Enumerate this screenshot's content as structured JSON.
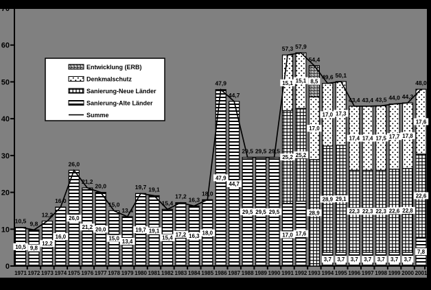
{
  "chart_data": {
    "type": "bar",
    "stacked": true,
    "title": "",
    "xlabel": "",
    "ylabel": "",
    "ylim": [
      0,
      70
    ],
    "yticks": [
      "0",
      "10",
      "20",
      "30",
      "40",
      "50",
      "60",
      "70"
    ],
    "grid": false,
    "legend_position": "upper-left-inside",
    "number_format": "decimal-comma",
    "categories": [
      "1971",
      "1972",
      "1973",
      "1974",
      "1975",
      "1976",
      "1977",
      "1978",
      "1979",
      "1980",
      "1981",
      "1982",
      "1983",
      "1984",
      "1985",
      "1986",
      "1987",
      "1988",
      "1989",
      "1990",
      "1991",
      "1992",
      "1993",
      "1994",
      "1995",
      "1996",
      "1997",
      "1998",
      "1999",
      "2000",
      "2001"
    ],
    "series": [
      {
        "name": "Sanierung-Alte Länder",
        "pattern": "hlines",
        "values": [
          10.5,
          9.8,
          12.2,
          16.0,
          26.0,
          21.2,
          20.0,
          15.0,
          13.4,
          19.7,
          19.1,
          15.4,
          17.2,
          16.3,
          18.0,
          47.9,
          44.7,
          29.5,
          29.5,
          29.5,
          17.0,
          17.6,
          0,
          3.7,
          3.7,
          3.7,
          3.7,
          3.7,
          3.7,
          3.7,
          7.8
        ]
      },
      {
        "name": "Sanierung-Neue Länder",
        "pattern": "grid",
        "values": [
          0,
          0,
          0,
          0,
          0,
          0,
          0,
          0,
          0,
          0,
          0,
          0,
          0,
          0,
          0,
          0,
          0,
          0,
          0,
          0,
          25.2,
          25.2,
          28.9,
          28.9,
          29.1,
          22.3,
          22.3,
          22.3,
          22.6,
          22.8,
          22.6
        ]
      },
      {
        "name": "Denkmalschutz",
        "pattern": "dots",
        "values": [
          0,
          0,
          0,
          0,
          0,
          0,
          0,
          0,
          0,
          0,
          0,
          0,
          0,
          0,
          0,
          0,
          0,
          0,
          0,
          0,
          15.1,
          15.1,
          17.0,
          17.0,
          17.3,
          17.4,
          17.4,
          17.5,
          17.7,
          17.8,
          17.6
        ]
      },
      {
        "name": "Entwicklung (ERB)",
        "pattern": "circles",
        "values": [
          0,
          0,
          0,
          0,
          0,
          0,
          0,
          0,
          0,
          0,
          0,
          0,
          0,
          0,
          0,
          0,
          0,
          0,
          0,
          0,
          0,
          0,
          8.5,
          0,
          0,
          0,
          0,
          0,
          0,
          0,
          0
        ]
      }
    ],
    "line_series": {
      "name": "Summe",
      "values": [
        10.5,
        9.8,
        12.2,
        16.0,
        26.0,
        21.2,
        20.0,
        15.0,
        13.4,
        19.7,
        19.1,
        15.4,
        17.2,
        16.3,
        18.0,
        47.9,
        44.7,
        29.5,
        29.5,
        29.5,
        57.3,
        57.9,
        54.4,
        49.6,
        50.1,
        43.4,
        43.4,
        43.5,
        44.0,
        44.3,
        48.0
      ]
    },
    "total_labels": [
      "10,5",
      "9,8",
      "12,2",
      "16,0",
      "26,0",
      "21,2",
      "20,0",
      "15,0",
      "13,4",
      "19,7",
      "19,1",
      "15,4",
      "17,2",
      "16,3",
      "18,0",
      "47,9",
      "44,7",
      "29,5",
      "29,5",
      "29,5",
      "57,3",
      "57,9",
      "54,4",
      "49,6",
      "50,1",
      "43,4",
      "43,4",
      "43,5",
      "44,0",
      "44,3",
      "48,0"
    ],
    "legend": {
      "items": [
        {
          "label": "Entwicklung (ERB)",
          "pattern": "circles"
        },
        {
          "label": "Denkmalschutz",
          "pattern": "dots"
        },
        {
          "label": "Sanierung-Neue Länder",
          "pattern": "grid"
        },
        {
          "label": "Sanierung-Alte Länder",
          "pattern": "hlines"
        },
        {
          "label": "Summe",
          "pattern": "line"
        }
      ]
    }
  },
  "colors": {
    "background_outer": "#000000",
    "background_plot": "#808080",
    "bar_fill": "#ffffff",
    "pattern_ink": "#000000",
    "axis": "#000000",
    "label_box": "#ffffff",
    "text": "#000000"
  }
}
